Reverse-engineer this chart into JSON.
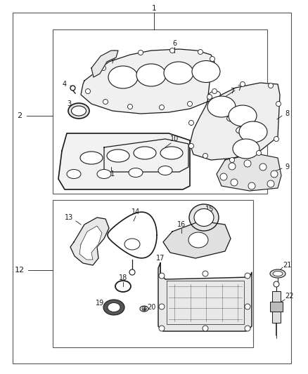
{
  "bg_color": "#ffffff",
  "dark": "#1a1a1a",
  "gray_light": "#e8e8e8",
  "gray_mid": "#cccccc"
}
